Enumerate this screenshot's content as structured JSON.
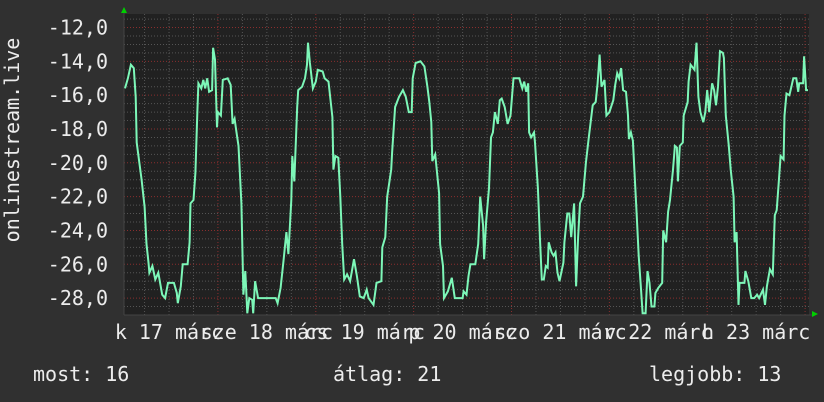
{
  "chart_data": {
    "type": "line",
    "title": "",
    "ylabel": "onlinestream.live",
    "xlabel": "",
    "xlim": [
      17.04,
      24.04
    ],
    "ylim": [
      -29.0,
      -11.2
    ],
    "x_unit": "day of March",
    "y_ticks": [
      -12,
      -14,
      -16,
      -18,
      -20,
      -22,
      -24,
      -26,
      -28
    ],
    "y_tick_labels": [
      "-12,0",
      "-14,0",
      "-16,0",
      "-18,0",
      "-20,0",
      "-22,0",
      "-24,0",
      "-26,0",
      "-28,0"
    ],
    "y_minor_step": 0.5,
    "x_major_step_days": 1,
    "x_minor_step_hours": 6,
    "x_tick_labels": [
      {
        "day": 17.5,
        "label": "k 17 márc"
      },
      {
        "day": 18.5,
        "label": "sze 18 márc"
      },
      {
        "day": 19.5,
        "label": "cs 19 márc"
      },
      {
        "day": 20.5,
        "label": "p 20 márc"
      },
      {
        "day": 21.5,
        "label": "szo 21 márc"
      },
      {
        "day": 22.5,
        "label": "v 22 márc"
      },
      {
        "day": 23.5,
        "label": "h 23 márc"
      }
    ],
    "grid": true,
    "colors": {
      "background": "#303030",
      "plot_background": "#212121",
      "minor_grid": "#555555",
      "major_grid": "#8a2e2e",
      "line": "#7df7b8",
      "arrow": "#00d000",
      "text": "#ececec"
    },
    "series": [
      {
        "points": [
          [
            17.05,
            -15.6
          ],
          [
            17.08,
            -15.0
          ],
          [
            17.11,
            -14.2
          ],
          [
            17.14,
            -14.4
          ],
          [
            17.16,
            -16.1
          ],
          [
            17.17,
            -18.8
          ],
          [
            17.19,
            -19.7
          ],
          [
            17.22,
            -21.0
          ],
          [
            17.25,
            -22.6
          ],
          [
            17.27,
            -24.8
          ],
          [
            17.29,
            -25.9
          ],
          [
            17.3,
            -26.5
          ],
          [
            17.33,
            -26.1
          ],
          [
            17.36,
            -26.9
          ],
          [
            17.39,
            -26.5
          ],
          [
            17.43,
            -27.8
          ],
          [
            17.46,
            -28.0
          ],
          [
            17.49,
            -27.1
          ],
          [
            17.55,
            -27.1
          ],
          [
            17.58,
            -27.7
          ],
          [
            17.59,
            -28.3
          ],
          [
            17.62,
            -27.3
          ],
          [
            17.64,
            -26.0
          ],
          [
            17.69,
            -26.0
          ],
          [
            17.71,
            -24.7
          ],
          [
            17.72,
            -22.4
          ],
          [
            17.75,
            -22.2
          ],
          [
            17.77,
            -20.6
          ],
          [
            17.79,
            -16.9
          ],
          [
            17.8,
            -15.3
          ],
          [
            17.83,
            -15.6
          ],
          [
            17.85,
            -15.1
          ],
          [
            17.87,
            -15.6
          ],
          [
            17.89,
            -15.0
          ],
          [
            17.91,
            -15.8
          ],
          [
            17.94,
            -15.7
          ],
          [
            17.95,
            -13.2
          ],
          [
            17.97,
            -13.9
          ],
          [
            17.99,
            -17.9
          ],
          [
            18.0,
            -17.0
          ],
          [
            18.03,
            -17.2
          ],
          [
            18.05,
            -15.1
          ],
          [
            18.1,
            -15.0
          ],
          [
            18.13,
            -15.4
          ],
          [
            18.15,
            -17.7
          ],
          [
            18.17,
            -17.4
          ],
          [
            18.19,
            -18.2
          ],
          [
            18.21,
            -19.0
          ],
          [
            18.24,
            -22.4
          ],
          [
            18.26,
            -27.8
          ],
          [
            18.28,
            -26.4
          ],
          [
            18.3,
            -28.9
          ],
          [
            18.32,
            -28.0
          ],
          [
            18.35,
            -28.1
          ],
          [
            18.36,
            -28.9
          ],
          [
            18.38,
            -27.0
          ],
          [
            18.41,
            -28.0
          ],
          [
            18.59,
            -28.0
          ],
          [
            18.61,
            -28.3
          ],
          [
            18.64,
            -27.4
          ],
          [
            18.67,
            -25.8
          ],
          [
            18.7,
            -24.1
          ],
          [
            18.72,
            -25.4
          ],
          [
            18.75,
            -22.2
          ],
          [
            18.76,
            -19.6
          ],
          [
            18.78,
            -21.1
          ],
          [
            18.81,
            -16.7
          ],
          [
            18.82,
            -15.7
          ],
          [
            18.86,
            -15.5
          ],
          [
            18.89,
            -15.0
          ],
          [
            18.91,
            -14.2
          ],
          [
            18.92,
            -12.9
          ],
          [
            18.94,
            -14.1
          ],
          [
            18.97,
            -15.6
          ],
          [
            19.0,
            -15.2
          ],
          [
            19.02,
            -14.5
          ],
          [
            19.07,
            -14.6
          ],
          [
            19.09,
            -15.0
          ],
          [
            19.13,
            -15.2
          ],
          [
            19.17,
            -17.3
          ],
          [
            19.18,
            -20.4
          ],
          [
            19.2,
            -19.6
          ],
          [
            19.23,
            -19.7
          ],
          [
            19.25,
            -22.0
          ],
          [
            19.27,
            -24.8
          ],
          [
            19.29,
            -26.9
          ],
          [
            19.32,
            -26.6
          ],
          [
            19.35,
            -27.0
          ],
          [
            19.39,
            -25.7
          ],
          [
            19.42,
            -26.7
          ],
          [
            19.45,
            -27.9
          ],
          [
            19.49,
            -28.0
          ],
          [
            19.52,
            -27.5
          ],
          [
            19.54,
            -28.0
          ],
          [
            19.59,
            -28.4
          ],
          [
            19.62,
            -27.1
          ],
          [
            19.67,
            -27.0
          ],
          [
            19.68,
            -25.0
          ],
          [
            19.71,
            -24.4
          ],
          [
            19.73,
            -22.0
          ],
          [
            19.75,
            -21.2
          ],
          [
            19.77,
            -20.4
          ],
          [
            19.78,
            -19.4
          ],
          [
            19.81,
            -16.7
          ],
          [
            19.85,
            -16.1
          ],
          [
            19.89,
            -15.7
          ],
          [
            19.92,
            -16.1
          ],
          [
            19.95,
            -17.0
          ],
          [
            19.98,
            -17.0
          ],
          [
            19.99,
            -15.0
          ],
          [
            20.02,
            -14.1
          ],
          [
            20.07,
            -14.0
          ],
          [
            20.11,
            -14.3
          ],
          [
            20.14,
            -15.5
          ],
          [
            20.16,
            -16.4
          ],
          [
            20.18,
            -17.6
          ],
          [
            20.19,
            -19.9
          ],
          [
            20.22,
            -19.5
          ],
          [
            20.26,
            -21.8
          ],
          [
            20.27,
            -24.8
          ],
          [
            20.3,
            -26.1
          ],
          [
            20.31,
            -28.0
          ],
          [
            20.35,
            -27.6
          ],
          [
            20.39,
            -26.8
          ],
          [
            20.42,
            -28.0
          ],
          [
            20.5,
            -28.0
          ],
          [
            20.51,
            -27.6
          ],
          [
            20.54,
            -27.8
          ],
          [
            20.56,
            -26.7
          ],
          [
            20.58,
            -26.0
          ],
          [
            20.63,
            -26.0
          ],
          [
            20.66,
            -24.8
          ],
          [
            20.68,
            -22.0
          ],
          [
            20.71,
            -23.7
          ],
          [
            20.72,
            -25.7
          ],
          [
            20.74,
            -23.5
          ],
          [
            20.77,
            -21.5
          ],
          [
            20.79,
            -18.5
          ],
          [
            20.81,
            -18.2
          ],
          [
            20.83,
            -17.0
          ],
          [
            20.86,
            -17.7
          ],
          [
            20.88,
            -16.3
          ],
          [
            20.9,
            -16.2
          ],
          [
            20.93,
            -16.7
          ],
          [
            20.96,
            -17.7
          ],
          [
            20.99,
            -17.2
          ],
          [
            21.02,
            -15.0
          ],
          [
            21.08,
            -15.0
          ],
          [
            21.11,
            -15.6
          ],
          [
            21.13,
            -15.2
          ],
          [
            21.15,
            -15.8
          ],
          [
            21.17,
            -15.3
          ],
          [
            21.18,
            -18.2
          ],
          [
            21.2,
            -18.5
          ],
          [
            21.23,
            -18.2
          ],
          [
            21.24,
            -18.8
          ],
          [
            21.27,
            -21.5
          ],
          [
            21.29,
            -24.4
          ],
          [
            21.31,
            -26.9
          ],
          [
            21.33,
            -26.9
          ],
          [
            21.35,
            -26.1
          ],
          [
            21.37,
            -26.2
          ],
          [
            21.38,
            -24.7
          ],
          [
            21.41,
            -25.3
          ],
          [
            21.43,
            -25.5
          ],
          [
            21.45,
            -25.3
          ],
          [
            21.47,
            -26.5
          ],
          [
            21.49,
            -27.0
          ],
          [
            21.53,
            -25.9
          ],
          [
            21.54,
            -24.7
          ],
          [
            21.57,
            -23.0
          ],
          [
            21.59,
            -23.0
          ],
          [
            21.61,
            -24.4
          ],
          [
            21.64,
            -22.4
          ],
          [
            21.66,
            -27.3
          ],
          [
            21.68,
            -24.4
          ],
          [
            21.7,
            -22.4
          ],
          [
            21.73,
            -22.0
          ],
          [
            21.76,
            -20.0
          ],
          [
            21.79,
            -18.5
          ],
          [
            21.83,
            -16.6
          ],
          [
            21.86,
            -16.4
          ],
          [
            21.88,
            -15.3
          ],
          [
            21.9,
            -13.6
          ],
          [
            21.92,
            -15.5
          ],
          [
            21.95,
            -15.1
          ],
          [
            21.97,
            -17.2
          ],
          [
            22.0,
            -17.0
          ],
          [
            22.04,
            -16.3
          ],
          [
            22.06,
            -15.4
          ],
          [
            22.08,
            -14.7
          ],
          [
            22.1,
            -15.0
          ],
          [
            22.12,
            -14.4
          ],
          [
            22.14,
            -15.7
          ],
          [
            22.17,
            -15.8
          ],
          [
            22.19,
            -17.2
          ],
          [
            22.2,
            -18.6
          ],
          [
            22.22,
            -18.2
          ],
          [
            22.24,
            -18.7
          ],
          [
            22.26,
            -20.9
          ],
          [
            22.28,
            -23.2
          ],
          [
            22.3,
            -25.5
          ],
          [
            22.32,
            -27.2
          ],
          [
            22.34,
            -28.9
          ],
          [
            22.37,
            -28.9
          ],
          [
            22.39,
            -26.4
          ],
          [
            22.41,
            -27.1
          ],
          [
            22.43,
            -28.5
          ],
          [
            22.46,
            -28.5
          ],
          [
            22.47,
            -27.7
          ],
          [
            22.5,
            -27.4
          ],
          [
            22.54,
            -27.1
          ],
          [
            22.55,
            -24.0
          ],
          [
            22.58,
            -24.7
          ],
          [
            22.6,
            -22.9
          ],
          [
            22.62,
            -22.2
          ],
          [
            22.65,
            -20.4
          ],
          [
            22.67,
            -19.0
          ],
          [
            22.69,
            -19.1
          ],
          [
            22.7,
            -21.1
          ],
          [
            22.72,
            -19.0
          ],
          [
            22.75,
            -18.8
          ],
          [
            22.76,
            -17.2
          ],
          [
            22.8,
            -16.4
          ],
          [
            22.81,
            -15.2
          ],
          [
            22.83,
            -14.2
          ],
          [
            22.87,
            -14.5
          ],
          [
            22.89,
            -12.9
          ],
          [
            22.91,
            -16.1
          ],
          [
            22.93,
            -17.0
          ],
          [
            22.96,
            -17.6
          ],
          [
            22.98,
            -17.0
          ],
          [
            23.0,
            -15.7
          ],
          [
            23.02,
            -17.0
          ],
          [
            23.05,
            -15.3
          ],
          [
            23.07,
            -15.7
          ],
          [
            23.09,
            -16.6
          ],
          [
            23.11,
            -15.5
          ],
          [
            23.13,
            -13.4
          ],
          [
            23.16,
            -13.5
          ],
          [
            23.17,
            -13.8
          ],
          [
            23.19,
            -17.2
          ],
          [
            23.22,
            -19.0
          ],
          [
            23.24,
            -20.4
          ],
          [
            23.27,
            -22.0
          ],
          [
            23.28,
            -24.7
          ],
          [
            23.3,
            -24.1
          ],
          [
            23.32,
            -28.4
          ],
          [
            23.33,
            -27.1
          ],
          [
            23.38,
            -27.1
          ],
          [
            23.39,
            -26.4
          ],
          [
            23.42,
            -27.0
          ],
          [
            23.45,
            -28.0
          ],
          [
            23.48,
            -28.0
          ],
          [
            23.51,
            -27.8
          ],
          [
            23.53,
            -28.0
          ],
          [
            23.57,
            -27.5
          ],
          [
            23.59,
            -28.4
          ],
          [
            23.61,
            -27.3
          ],
          [
            23.64,
            -26.3
          ],
          [
            23.67,
            -26.6
          ],
          [
            23.69,
            -23.1
          ],
          [
            23.71,
            -22.8
          ],
          [
            23.73,
            -21.2
          ],
          [
            23.75,
            -19.6
          ],
          [
            23.78,
            -19.8
          ],
          [
            23.79,
            -17.2
          ],
          [
            23.81,
            -15.9
          ],
          [
            23.84,
            -16.0
          ],
          [
            23.86,
            -15.5
          ],
          [
            23.88,
            -15.0
          ],
          [
            23.91,
            -15.0
          ],
          [
            23.93,
            -15.8
          ],
          [
            23.94,
            -15.3
          ],
          [
            23.98,
            -15.3
          ],
          [
            23.99,
            -13.7
          ],
          [
            24.01,
            -15.7
          ],
          [
            24.03,
            -15.7
          ]
        ]
      }
    ]
  },
  "legend": {
    "current_label": "most:",
    "current_value": "16",
    "average_label": "átlag:",
    "average_value": "21",
    "best_label": "legjobb:",
    "best_value": "13"
  }
}
